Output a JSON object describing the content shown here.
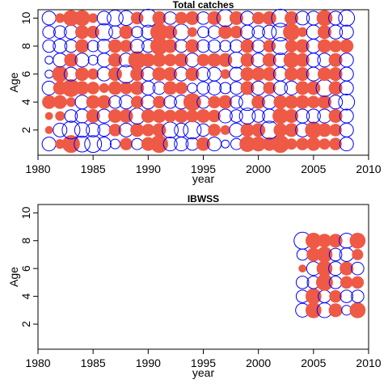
{
  "colors": {
    "positive": "#EE5A45",
    "negative": "#0000FF"
  },
  "chart_data": [
    {
      "type": "scatter",
      "title": "Total catches",
      "xlabel": "year",
      "ylabel": "Age",
      "xlim": [
        1980,
        2010
      ],
      "ylim": [
        0.2,
        10.6
      ],
      "xticks": [
        1980,
        1985,
        1990,
        1995,
        2000,
        2005,
        2010
      ],
      "yticks": [
        2,
        4,
        6,
        8,
        10
      ],
      "grid": false,
      "years": [
        1981,
        1982,
        1983,
        1984,
        1985,
        1986,
        1987,
        1988,
        1989,
        1990,
        1991,
        1992,
        1993,
        1994,
        1995,
        1996,
        1997,
        1998,
        1999,
        2000,
        2001,
        2002,
        2003,
        2004,
        2005,
        2006,
        2007,
        2008
      ],
      "residuals": {
        "1": [
          -0.6,
          0.3,
          1.0,
          -0.8,
          -0.9,
          -0.6,
          -0.3,
          0.5,
          -0.4,
          0.6,
          1.0,
          -0.6,
          -0.6,
          -0.5,
          0.6,
          -0.6,
          -0.2,
          -0.4,
          0.8,
          0.7,
          0.6,
          1.0,
          0.4,
          0.5,
          0.6,
          0.4,
          0.5,
          -0.6
        ],
        "2": [
          0.2,
          -0.6,
          -1.0,
          -0.7,
          -0.6,
          -0.5,
          0.5,
          -0.6,
          0.6,
          0.5,
          0.6,
          -0.8,
          -0.6,
          -1.0,
          -0.5,
          0.5,
          0.3,
          -0.6,
          0.6,
          0.6,
          -1.0,
          0.6,
          0.6,
          -0.6,
          0.9,
          0.6,
          0.5,
          -0.6
        ],
        "3": [
          0.2,
          0.3,
          -0.5,
          -0.6,
          0.6,
          -0.6,
          0.6,
          0.6,
          -0.8,
          0.6,
          0.6,
          0.5,
          0.6,
          0.5,
          0.6,
          0.5,
          -0.6,
          -0.5,
          -0.8,
          -0.5,
          -0.6,
          0.8,
          0.6,
          -0.6,
          -0.6,
          -0.6,
          0.6,
          -0.6
        ],
        "4": [
          0.6,
          0.6,
          0.3,
          -0.6,
          0.6,
          0.6,
          -0.5,
          -0.6,
          0.5,
          -0.6,
          0.5,
          -0.5,
          -0.6,
          1.0,
          -0.5,
          0.5,
          0.6,
          -0.5,
          -0.9,
          0.6,
          -0.6,
          0.6,
          0.6,
          0.6,
          0.5,
          0.6,
          -0.6,
          -0.8
        ],
        "5": [
          -0.6,
          0.6,
          1.0,
          0.6,
          0.5,
          0.3,
          0.6,
          0.5,
          0.6,
          -0.6,
          -0.5,
          0.6,
          0.5,
          -0.3,
          -0.5,
          -0.6,
          -0.4,
          -0.5,
          0.6,
          -0.6,
          0.5,
          -0.6,
          -0.6,
          0.6,
          0.6,
          -0.9,
          0.6,
          -0.6
        ],
        "6": [
          -0.2,
          0.8,
          -0.6,
          0.6,
          0.4,
          -0.6,
          0.6,
          -1.0,
          0.6,
          -0.6,
          0.6,
          0.6,
          -0.6,
          0.6,
          -0.6,
          -0.6,
          0.3,
          -0.6,
          0.6,
          0.6,
          0.6,
          -0.6,
          0.6,
          0.6,
          -0.6,
          0.6,
          0.6,
          -0.6
        ],
        "7": [
          -0.2,
          -0.6,
          0.6,
          -0.6,
          -0.3,
          -0.6,
          0.6,
          -0.6,
          1.0,
          0.6,
          0.6,
          0.5,
          0.6,
          -0.6,
          0.5,
          0.6,
          0.6,
          -0.8,
          0.6,
          -0.6,
          0.6,
          -0.6,
          0.8,
          0.6,
          -0.6,
          -0.6,
          0.6,
          -0.6
        ],
        "8": [
          -0.5,
          -0.6,
          -0.5,
          0.6,
          -0.4,
          -0.6,
          0.6,
          0.5,
          -0.6,
          -0.5,
          1.0,
          0.6,
          -0.5,
          0.6,
          -0.5,
          -0.5,
          -0.4,
          -0.5,
          0.6,
          -0.5,
          0.5,
          -0.9,
          0.5,
          0.6,
          -0.6,
          0.6,
          0.5,
          0.6
        ],
        "9": [
          -0.5,
          -0.5,
          -0.6,
          0.6,
          0.5,
          -0.9,
          -0.5,
          0.6,
          -0.4,
          -0.6,
          1.0,
          0.6,
          -0.8,
          0.3,
          -0.4,
          -0.5,
          0.6,
          0.5,
          -0.6,
          -0.5,
          -0.6,
          -1.0,
          0.9,
          0.3,
          -0.6,
          0.6,
          -0.6,
          -0.6
        ],
        "10": [
          -0.6,
          0.3,
          0.8,
          0.8,
          0.3,
          -0.6,
          -0.8,
          -0.7,
          0.5,
          -1.0,
          0.6,
          -0.5,
          0.5,
          0.6,
          -0.5,
          0.6,
          -0.9,
          0.6,
          -0.6,
          0.5,
          0.6,
          -1.0,
          0.6,
          -0.6,
          -0.6,
          0.8,
          -0.6,
          -0.8
        ]
      }
    },
    {
      "type": "scatter",
      "title": "IBWSS",
      "xlabel": "year",
      "ylabel": "Age",
      "xlim": [
        1980,
        2010
      ],
      "ylim": [
        0.2,
        10.6
      ],
      "xticks": [
        1980,
        1985,
        1990,
        1995,
        2000,
        2005,
        2010
      ],
      "yticks": [
        2,
        4,
        6,
        8,
        10
      ],
      "grid": false,
      "years": [
        2004,
        2005,
        2006,
        2007,
        2008,
        2009
      ],
      "residuals": {
        "3": [
          -0.6,
          0.8,
          -0.7,
          0.6,
          -0.3,
          0.8
        ],
        "4": [
          -0.5,
          0.8,
          -0.5,
          0.5,
          -0.5,
          -0.5
        ],
        "5": [
          -0.5,
          -0.5,
          0.9,
          -0.5,
          0.5,
          0.5
        ],
        "6": [
          0.2,
          -0.6,
          0.8,
          -0.6,
          0.6,
          -0.5
        ],
        "7": [
          -0.4,
          0.6,
          0.8,
          -0.5,
          -0.6,
          0.4
        ],
        "8": [
          -0.9,
          0.8,
          0.6,
          0.6,
          -0.7,
          0.8
        ]
      }
    }
  ]
}
